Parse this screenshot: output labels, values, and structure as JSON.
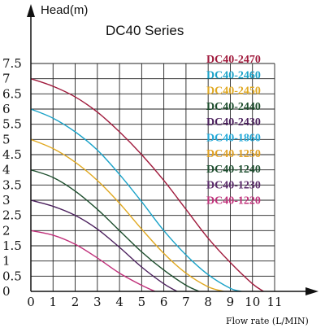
{
  "chart_data": {
    "type": "line",
    "title": "DC40 Series",
    "ylabel": "Head(m)",
    "xlabel": "Flow rate (L/MIN)",
    "xlim": [
      0,
      11
    ],
    "ylim": [
      0,
      7.5
    ],
    "x_ticks": [
      "0",
      "1",
      "2",
      "3",
      "4",
      "5",
      "6",
      "7",
      "8",
      "9",
      "10",
      "11"
    ],
    "y_ticks": [
      "0",
      "0.5",
      "1",
      "1.5",
      "2",
      "2.5",
      "3",
      "3.5",
      "4",
      "4.5",
      "5",
      "5.5",
      "6",
      "6.5",
      "7",
      "7.5"
    ],
    "grid": true,
    "legend_position": "top-right",
    "series": [
      {
        "name": "DC40-2470",
        "color": "#a01a3c",
        "x": [
          0,
          1,
          2,
          3,
          4,
          5,
          6,
          7,
          8,
          9,
          10,
          10.5
        ],
        "y": [
          7.0,
          6.75,
          6.4,
          5.9,
          5.25,
          4.5,
          3.65,
          2.7,
          1.75,
          0.95,
          0.25,
          0.0
        ]
      },
      {
        "name": "DC40-2460",
        "color": "#1aa2c8",
        "x": [
          0,
          1,
          2,
          3,
          4,
          5,
          6,
          7,
          8,
          9,
          9.5
        ],
        "y": [
          6.0,
          5.7,
          5.25,
          4.65,
          3.85,
          2.95,
          2.0,
          1.2,
          0.55,
          0.1,
          0.0
        ]
      },
      {
        "name": "DC40-2450",
        "color": "#e0a820",
        "x": [
          0,
          1,
          2,
          3,
          4,
          5,
          6,
          7,
          8,
          8.7
        ],
        "y": [
          5.0,
          4.7,
          4.25,
          3.65,
          2.9,
          2.05,
          1.25,
          0.6,
          0.15,
          0.0
        ]
      },
      {
        "name": "DC40-2440",
        "color": "#1c4d2c",
        "x": [
          0,
          1,
          2,
          3,
          4,
          5,
          6,
          7,
          7.6
        ],
        "y": [
          4.0,
          3.75,
          3.3,
          2.7,
          2.0,
          1.3,
          0.7,
          0.2,
          0.0
        ]
      },
      {
        "name": "DC40-2430",
        "color": "#4a1f5c",
        "x": [
          0,
          1,
          2,
          3,
          4,
          5,
          6,
          6.6
        ],
        "y": [
          3.0,
          2.8,
          2.5,
          2.05,
          1.45,
          0.8,
          0.25,
          0.0
        ]
      },
      {
        "name": "DC40-1860",
        "color": "#20a8d8",
        "x": [],
        "y": []
      },
      {
        "name": "DC40-1250",
        "color": "#e0a020",
        "x": [],
        "y": []
      },
      {
        "name": "DC40-1240",
        "color": "#1f4f30",
        "x": [],
        "y": []
      },
      {
        "name": "DC40-1230",
        "color": "#5a2a6a",
        "x": [],
        "y": []
      },
      {
        "name": "DC40-1220",
        "color": "#c0307a",
        "x": [
          0,
          1,
          2,
          3,
          4,
          5,
          5.6
        ],
        "y": [
          2.0,
          1.85,
          1.55,
          1.1,
          0.6,
          0.2,
          0.0
        ]
      }
    ]
  }
}
